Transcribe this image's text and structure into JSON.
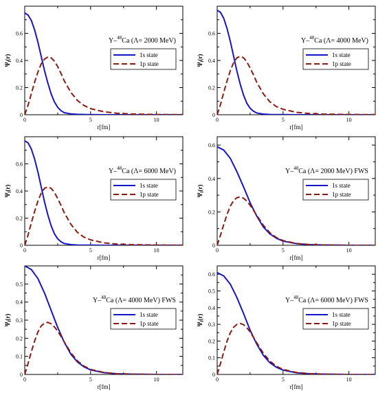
{
  "figure": {
    "legend": {
      "s_label": "1s state",
      "p_label": "1p state"
    },
    "colors": {
      "s": "#1515c8",
      "p": "#8b1a10"
    }
  },
  "chart_data": [
    {
      "type": "line",
      "title_lines": [
        "Y–",
        "48",
        "Ca (Λ= 2000 MeV)"
      ],
      "xlabel": "r[fm]",
      "ylabel_main": "Ψ",
      "ylabel_sub": "l",
      "ylabel_tail": "(r)",
      "xlim": [
        0,
        12
      ],
      "ylim": [
        0,
        0.8
      ],
      "xticks": [
        0,
        5,
        10
      ],
      "yticks": [
        0,
        0.2,
        0.4,
        0.6
      ],
      "ytick_labels": [
        "0",
        "0.2",
        "0.4",
        "0.6"
      ],
      "legend_position": "upper right",
      "series": [
        {
          "name": "1s state",
          "style": "solid",
          "x": [
            0,
            0.25,
            0.5,
            0.75,
            1.0,
            1.25,
            1.5,
            1.75,
            2.0,
            2.25,
            2.5,
            2.75,
            3.0,
            3.5,
            4.0,
            5.0,
            6.0,
            8.0,
            10.0,
            12.0
          ],
          "y": [
            0.75,
            0.735,
            0.695,
            0.625,
            0.535,
            0.43,
            0.325,
            0.235,
            0.155,
            0.095,
            0.055,
            0.03,
            0.015,
            0.006,
            0.003,
            0.001,
            0.0,
            0.0,
            0.0,
            0.0
          ]
        },
        {
          "name": "1p state",
          "style": "dashed",
          "x": [
            0,
            0.25,
            0.5,
            0.75,
            1.0,
            1.25,
            1.5,
            1.75,
            2.0,
            2.25,
            2.5,
            2.75,
            3.0,
            3.5,
            4.0,
            4.5,
            5.0,
            6.0,
            7.0,
            8.0,
            10.0,
            12.0
          ],
          "y": [
            0,
            0.07,
            0.155,
            0.24,
            0.315,
            0.375,
            0.41,
            0.425,
            0.42,
            0.395,
            0.355,
            0.305,
            0.25,
            0.165,
            0.105,
            0.068,
            0.045,
            0.022,
            0.011,
            0.006,
            0.002,
            0.001
          ]
        }
      ]
    },
    {
      "type": "line",
      "title_lines": [
        "Y–",
        "48",
        "Ca (Λ= 4000 MeV)"
      ],
      "xlabel": "r[fm]",
      "ylabel_main": "Ψ",
      "ylabel_sub": "l",
      "ylabel_tail": "(r)",
      "xlim": [
        0,
        12
      ],
      "ylim": [
        0,
        0.8
      ],
      "xticks": [
        0,
        5,
        10
      ],
      "yticks": [
        0,
        0.2,
        0.4,
        0.6
      ],
      "ytick_labels": [
        "0",
        "0.2",
        "0.4",
        "0.6"
      ],
      "legend_position": "upper right",
      "series": [
        {
          "name": "1s state",
          "style": "solid",
          "x": [
            0,
            0.25,
            0.5,
            0.75,
            1.0,
            1.25,
            1.5,
            1.75,
            2.0,
            2.25,
            2.5,
            2.75,
            3.0,
            3.5,
            4.0,
            5.0,
            6.0,
            8.0,
            10.0,
            12.0
          ],
          "y": [
            0.77,
            0.755,
            0.71,
            0.635,
            0.54,
            0.43,
            0.32,
            0.225,
            0.145,
            0.085,
            0.048,
            0.026,
            0.013,
            0.005,
            0.002,
            0.001,
            0.0,
            0.0,
            0.0,
            0.0
          ]
        },
        {
          "name": "1p state",
          "style": "dashed",
          "x": [
            0,
            0.25,
            0.5,
            0.75,
            1.0,
            1.25,
            1.5,
            1.75,
            2.0,
            2.25,
            2.5,
            2.75,
            3.0,
            3.5,
            4.0,
            4.5,
            5.0,
            6.0,
            7.0,
            8.0,
            10.0,
            12.0
          ],
          "y": [
            0,
            0.075,
            0.165,
            0.25,
            0.325,
            0.385,
            0.42,
            0.43,
            0.42,
            0.39,
            0.345,
            0.295,
            0.24,
            0.155,
            0.095,
            0.06,
            0.04,
            0.018,
            0.009,
            0.005,
            0.002,
            0.001
          ]
        }
      ]
    },
    {
      "type": "line",
      "title_lines": [
        "Y–",
        "48",
        "Ca (Λ= 6000 MeV)"
      ],
      "xlabel": "r[fm]",
      "ylabel_main": "Ψ",
      "ylabel_sub": "l",
      "ylabel_tail": "(r)",
      "xlim": [
        0,
        12
      ],
      "ylim": [
        0,
        0.8
      ],
      "xticks": [
        0,
        5,
        10
      ],
      "yticks": [
        0,
        0.2,
        0.4,
        0.6
      ],
      "ytick_labels": [
        "0",
        "0.2",
        "0.4",
        "0.6"
      ],
      "legend_position": "upper right",
      "series": [
        {
          "name": "1s state",
          "style": "solid",
          "x": [
            0,
            0.25,
            0.5,
            0.75,
            1.0,
            1.25,
            1.5,
            1.75,
            2.0,
            2.25,
            2.5,
            2.75,
            3.0,
            3.5,
            4.0,
            5.0,
            6.0,
            8.0,
            10.0,
            12.0
          ],
          "y": [
            0.77,
            0.755,
            0.71,
            0.635,
            0.54,
            0.43,
            0.32,
            0.225,
            0.145,
            0.085,
            0.048,
            0.026,
            0.013,
            0.005,
            0.002,
            0.001,
            0.0,
            0.0,
            0.0,
            0.0
          ]
        },
        {
          "name": "1p state",
          "style": "dashed",
          "x": [
            0,
            0.25,
            0.5,
            0.75,
            1.0,
            1.25,
            1.5,
            1.75,
            2.0,
            2.25,
            2.5,
            2.75,
            3.0,
            3.5,
            4.0,
            4.5,
            5.0,
            6.0,
            7.0,
            8.0,
            10.0,
            12.0
          ],
          "y": [
            0,
            0.075,
            0.165,
            0.25,
            0.325,
            0.385,
            0.42,
            0.43,
            0.42,
            0.39,
            0.345,
            0.295,
            0.24,
            0.155,
            0.095,
            0.06,
            0.04,
            0.018,
            0.009,
            0.005,
            0.002,
            0.001
          ]
        }
      ]
    },
    {
      "type": "line",
      "title_lines": [
        "Y–",
        "48",
        "Ca (Λ= 2000 MeV) FWS"
      ],
      "xlabel": "r[fm]",
      "ylabel_main": "Ψ",
      "ylabel_sub": "l",
      "ylabel_tail": "(r)",
      "xlim": [
        0,
        12
      ],
      "ylim": [
        0,
        0.65
      ],
      "xticks": [
        0,
        5,
        10
      ],
      "yticks": [
        0,
        0.2,
        0.4,
        0.6
      ],
      "ytick_labels": [
        "0",
        "0.2",
        "0.4",
        "0.6"
      ],
      "legend_position": "upper right",
      "series": [
        {
          "name": "1s state",
          "style": "solid",
          "x": [
            0,
            0.5,
            1.0,
            1.5,
            2.0,
            2.5,
            3.0,
            3.5,
            4.0,
            4.5,
            5.0,
            6.0,
            7.0,
            8.0,
            10.0,
            12.0
          ],
          "y": [
            0.59,
            0.57,
            0.52,
            0.44,
            0.35,
            0.255,
            0.175,
            0.11,
            0.068,
            0.042,
            0.025,
            0.01,
            0.004,
            0.002,
            0.0,
            0.0
          ]
        },
        {
          "name": "1p state",
          "style": "dashed",
          "x": [
            0,
            0.25,
            0.5,
            0.75,
            1.0,
            1.25,
            1.5,
            1.75,
            2.0,
            2.25,
            2.5,
            3.0,
            3.5,
            4.0,
            4.5,
            5.0,
            6.0,
            7.0,
            8.0,
            10.0,
            12.0
          ],
          "y": [
            0,
            0.06,
            0.125,
            0.185,
            0.235,
            0.268,
            0.285,
            0.29,
            0.282,
            0.265,
            0.24,
            0.18,
            0.12,
            0.075,
            0.046,
            0.028,
            0.011,
            0.004,
            0.002,
            0.0,
            0.0
          ]
        }
      ]
    },
    {
      "type": "line",
      "title_lines": [
        "Y–",
        "48",
        "Ca (Λ= 4000 MeV) FWS"
      ],
      "xlabel": "r[fm]",
      "ylabel_main": "Ψ",
      "ylabel_sub": "l",
      "ylabel_tail": "(r)",
      "xlim": [
        0,
        12
      ],
      "ylim": [
        0,
        0.6
      ],
      "xticks": [
        0,
        5,
        10
      ],
      "yticks": [
        0,
        0.1,
        0.2,
        0.3,
        0.4,
        0.5
      ],
      "ytick_labels": [
        "0",
        "0.1",
        "0.2",
        "0.3",
        "0.4",
        "0.5"
      ],
      "legend_position": "upper right",
      "series": [
        {
          "name": "1s state",
          "style": "solid",
          "x": [
            0,
            0.5,
            1.0,
            1.5,
            2.0,
            2.5,
            3.0,
            3.5,
            4.0,
            4.5,
            5.0,
            6.0,
            7.0,
            8.0,
            10.0,
            12.0
          ],
          "y": [
            0.6,
            0.58,
            0.53,
            0.45,
            0.355,
            0.26,
            0.178,
            0.112,
            0.069,
            0.042,
            0.025,
            0.01,
            0.004,
            0.002,
            0.0,
            0.0
          ]
        },
        {
          "name": "1p state",
          "style": "dashed",
          "x": [
            0,
            0.25,
            0.5,
            0.75,
            1.0,
            1.25,
            1.5,
            1.75,
            2.0,
            2.25,
            2.5,
            3.0,
            3.5,
            4.0,
            4.5,
            5.0,
            6.0,
            7.0,
            8.0,
            10.0,
            12.0
          ],
          "y": [
            0,
            0.06,
            0.125,
            0.185,
            0.235,
            0.268,
            0.284,
            0.288,
            0.28,
            0.263,
            0.24,
            0.18,
            0.12,
            0.075,
            0.046,
            0.028,
            0.011,
            0.004,
            0.002,
            0.0,
            0.0
          ]
        }
      ]
    },
    {
      "type": "line",
      "title_lines": [
        "Y–",
        "48",
        "Ca (Λ= 6000 MeV) FWS"
      ],
      "xlabel": "r[fm]",
      "ylabel_main": "Ψ",
      "ylabel_sub": "l",
      "ylabel_tail": "(r)",
      "xlim": [
        0,
        12
      ],
      "ylim": [
        0,
        0.65
      ],
      "xticks": [
        0,
        5,
        10
      ],
      "yticks": [
        0,
        0.1,
        0.2,
        0.3,
        0.4,
        0.5,
        0.6
      ],
      "ytick_labels": [
        "0",
        "0.1",
        "0.2",
        "0.3",
        "0.4",
        "0.5",
        "0.6"
      ],
      "legend_position": "upper right",
      "series": [
        {
          "name": "1s state",
          "style": "solid",
          "x": [
            0,
            0.5,
            1.0,
            1.5,
            2.0,
            2.5,
            3.0,
            3.5,
            4.0,
            4.5,
            5.0,
            6.0,
            7.0,
            8.0,
            10.0,
            12.0
          ],
          "y": [
            0.61,
            0.59,
            0.54,
            0.46,
            0.365,
            0.265,
            0.182,
            0.115,
            0.07,
            0.043,
            0.026,
            0.01,
            0.004,
            0.002,
            0.0,
            0.0
          ]
        },
        {
          "name": "1p state",
          "style": "dashed",
          "x": [
            0,
            0.25,
            0.5,
            0.75,
            1.0,
            1.25,
            1.5,
            1.75,
            2.0,
            2.25,
            2.5,
            3.0,
            3.5,
            4.0,
            4.5,
            5.0,
            6.0,
            7.0,
            8.0,
            10.0,
            12.0
          ],
          "y": [
            0,
            0.065,
            0.135,
            0.2,
            0.25,
            0.283,
            0.3,
            0.305,
            0.298,
            0.28,
            0.255,
            0.19,
            0.127,
            0.08,
            0.049,
            0.03,
            0.012,
            0.005,
            0.002,
            0.0,
            0.0
          ]
        }
      ]
    }
  ]
}
